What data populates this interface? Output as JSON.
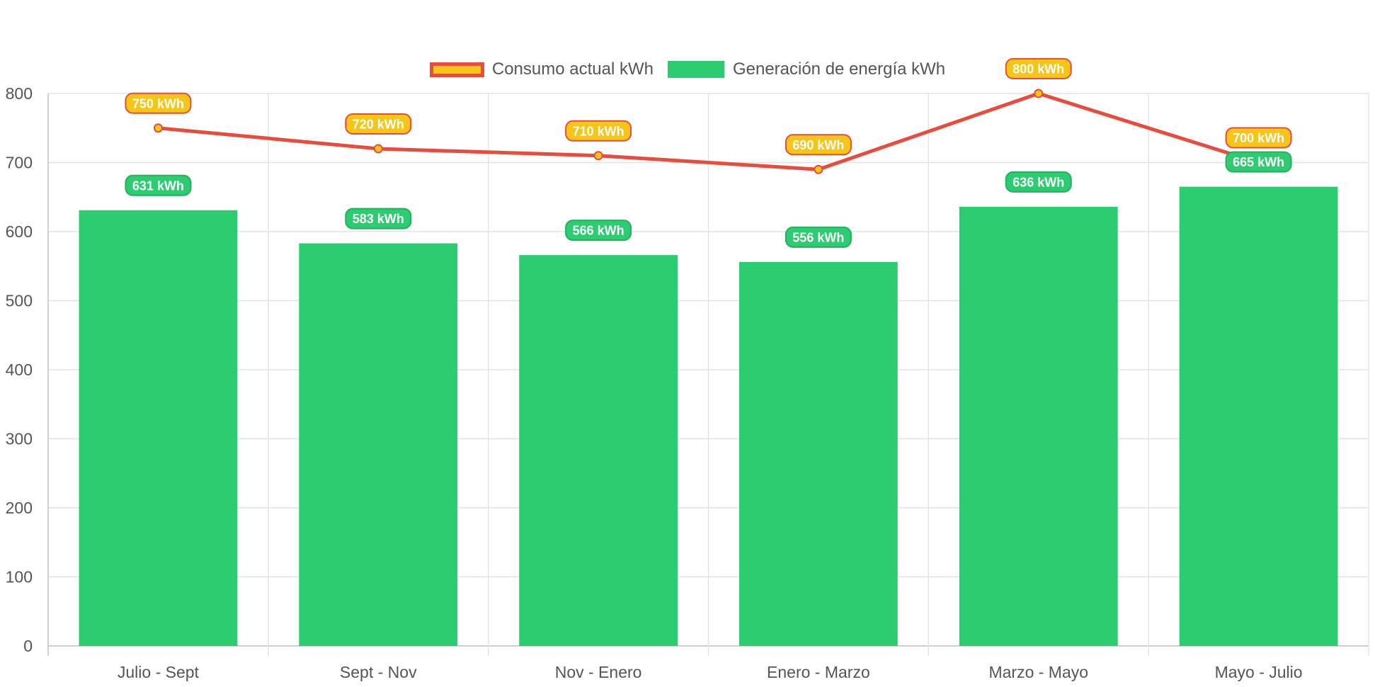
{
  "chart_data": {
    "type": "bar",
    "categories": [
      "Julio - Sept",
      "Sept - Nov",
      "Nov - Enero",
      "Enero - Marzo",
      "Marzo - Mayo",
      "Mayo - Julio"
    ],
    "series": [
      {
        "name": "Consumo actual kWh",
        "type": "line",
        "values": [
          750,
          720,
          710,
          690,
          800,
          700
        ],
        "data_labels": [
          "750 kWh",
          "720 kWh",
          "710 kWh",
          "690 kWh",
          "800 kWh",
          "700 kWh"
        ],
        "color": "#e74c3c",
        "point_color": "#f5c518"
      },
      {
        "name": "Generación de energía kWh",
        "type": "bar",
        "values": [
          631,
          583,
          566,
          556,
          636,
          665
        ],
        "data_labels": [
          "631 kWh",
          "583 kWh",
          "566 kWh",
          "556 kWh",
          "636 kWh",
          "665 kWh"
        ],
        "color": "#2ecc71"
      }
    ],
    "title": "",
    "xlabel": "",
    "ylabel": "",
    "ylim": [
      0,
      800
    ],
    "yticks": [
      "0",
      "100",
      "200",
      "300",
      "400",
      "500",
      "600",
      "700",
      "800"
    ],
    "grid": true,
    "legend_position": "top"
  }
}
